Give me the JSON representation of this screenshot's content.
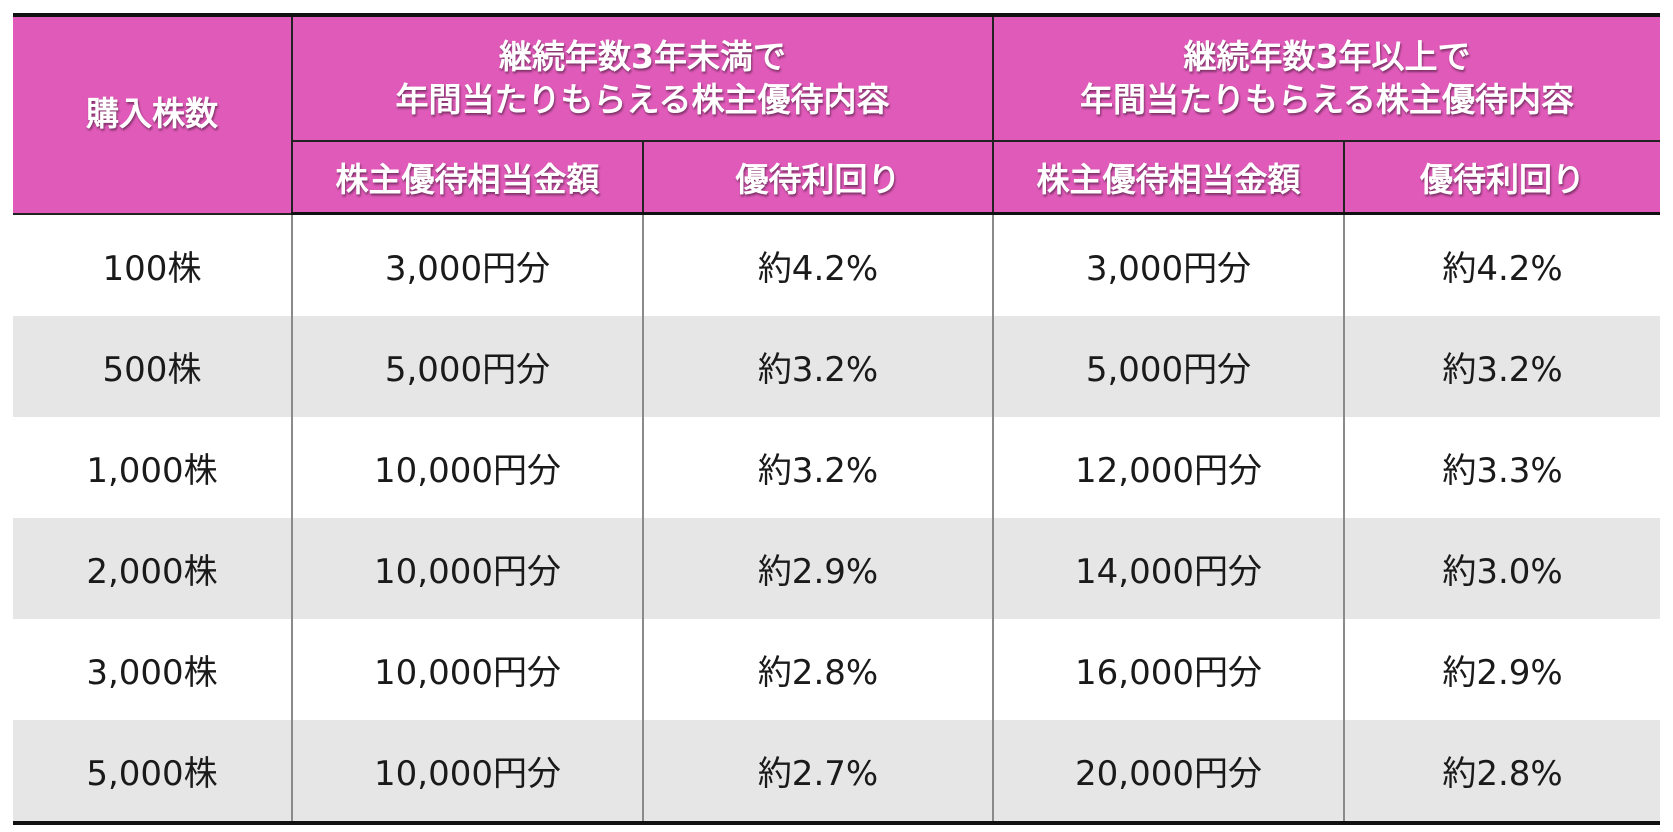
{
  "table": {
    "corner": "購入株数",
    "groups": [
      {
        "lines": [
          "継続年数3年未満で",
          "年間当たりもらえる株主優待内容"
        ]
      },
      {
        "lines": [
          "継続年数3年以上で",
          "年間当たりもらえる株主優待内容"
        ]
      }
    ],
    "subheaders": [
      "株主優待相当金額",
      "優待利回り",
      "株主優待相当金額",
      "優待利回り"
    ],
    "rows": [
      [
        "100株",
        "3,000円分",
        "約4.2%",
        "3,000円分",
        "約4.2%"
      ],
      [
        "500株",
        "5,000円分",
        "約3.2%",
        "5,000円分",
        "約3.2%"
      ],
      [
        "1,000株",
        "10,000円分",
        "約3.2%",
        "12,000円分",
        "約3.3%"
      ],
      [
        "2,000株",
        "10,000円分",
        "約2.9%",
        "14,000円分",
        "約3.0%"
      ],
      [
        "3,000株",
        "10,000円分",
        "約2.8%",
        "16,000円分",
        "約2.9%"
      ],
      [
        "5,000株",
        "10,000円分",
        "約2.7%",
        "20,000円分",
        "約2.8%"
      ]
    ]
  }
}
